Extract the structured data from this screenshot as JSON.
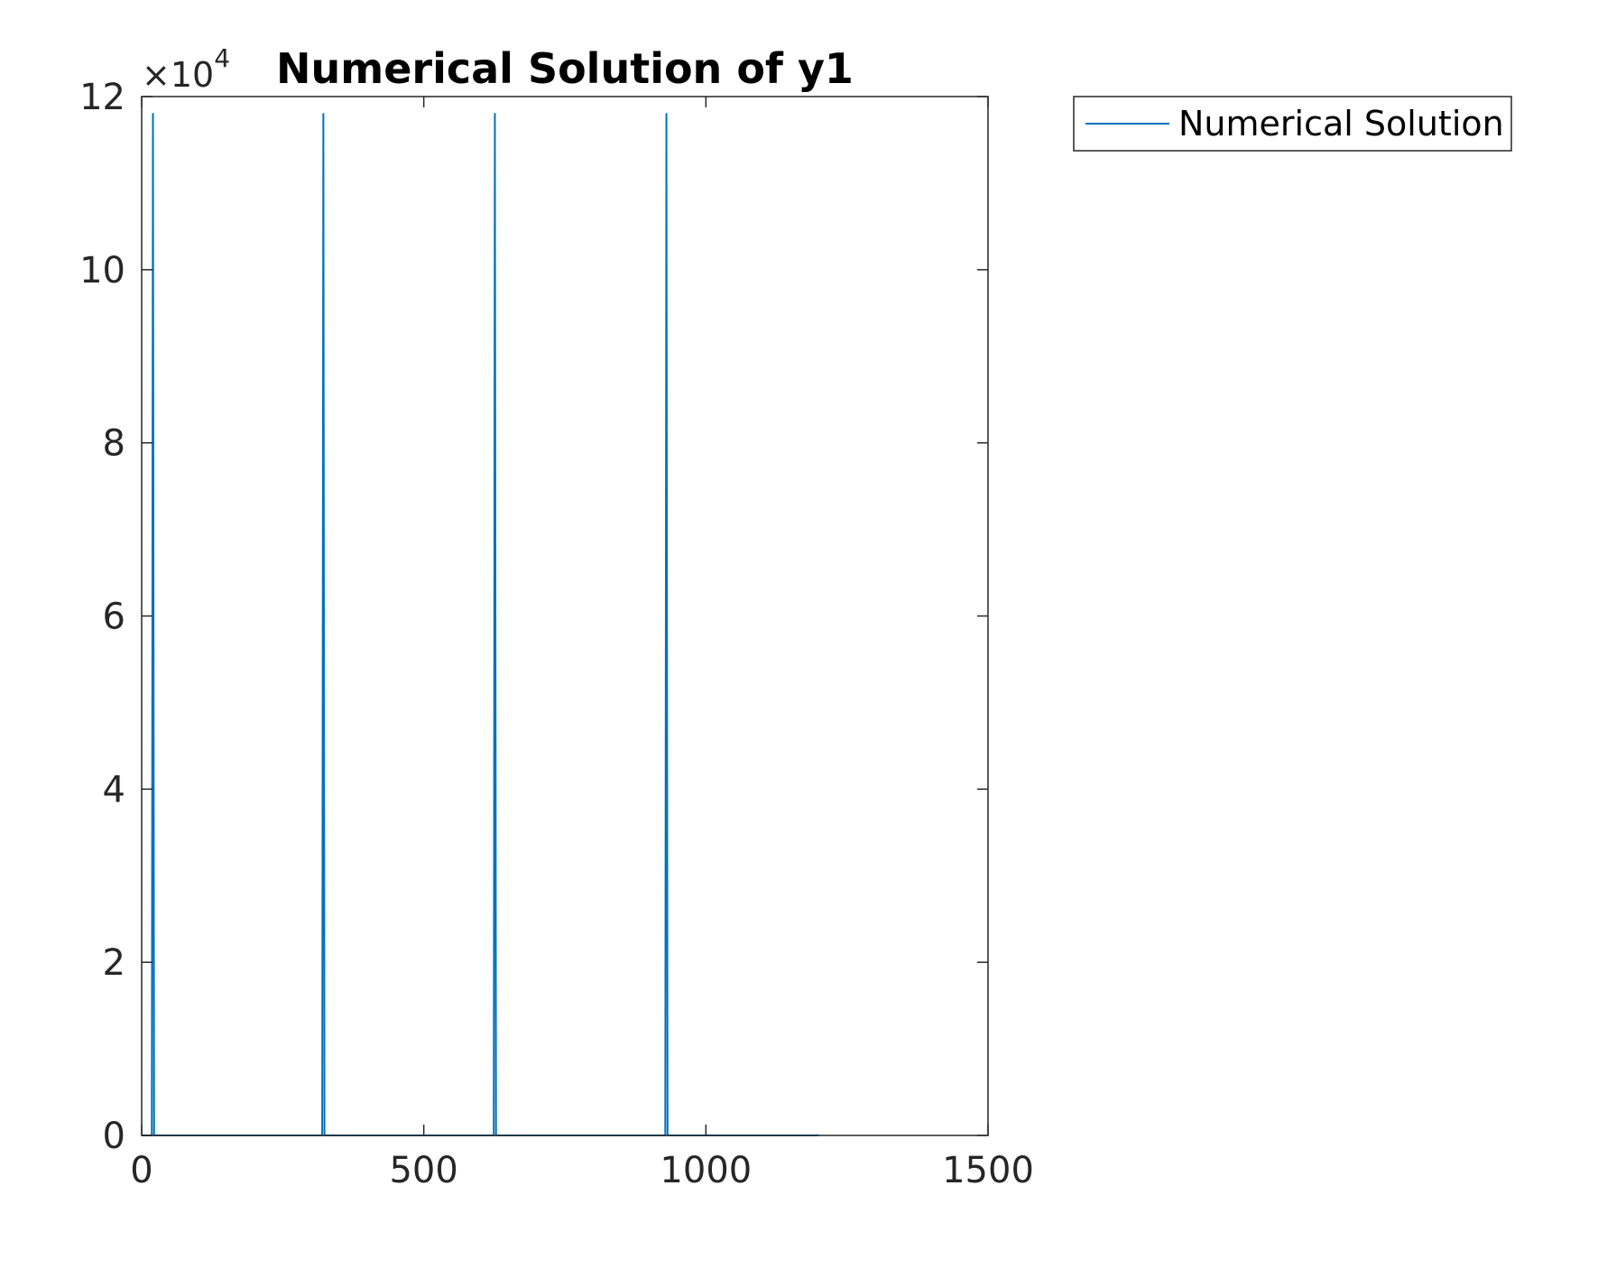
{
  "chart_data": {
    "type": "line",
    "title": "Numerical Solution of y1",
    "xlabel": "",
    "ylabel": "",
    "xlim": [
      0,
      1500
    ],
    "ylim": [
      0,
      120000
    ],
    "y_exponent_label": "×10",
    "y_exponent_power": "4",
    "x_ticks": [
      0,
      500,
      1000,
      1500
    ],
    "x_tick_labels": [
      "0",
      "500",
      "1000",
      "1500"
    ],
    "y_ticks": [
      0,
      20000,
      40000,
      60000,
      80000,
      100000,
      120000
    ],
    "y_tick_labels": [
      "0",
      "2",
      "4",
      "6",
      "8",
      "10",
      "12"
    ],
    "grid": false,
    "legend_location": "outside-top-right",
    "series": [
      {
        "name": "Numerical Solution",
        "color": "#0072BD",
        "x": [
          0,
          18,
          20,
          22,
          24,
          320,
          322,
          324,
          326,
          624,
          626,
          628,
          630,
          928,
          930,
          932,
          934,
          1200
        ],
        "y": [
          0,
          0,
          118000,
          0,
          0,
          0,
          118000,
          0,
          0,
          0,
          118000,
          0,
          0,
          0,
          118000,
          0,
          0,
          0
        ]
      }
    ]
  }
}
